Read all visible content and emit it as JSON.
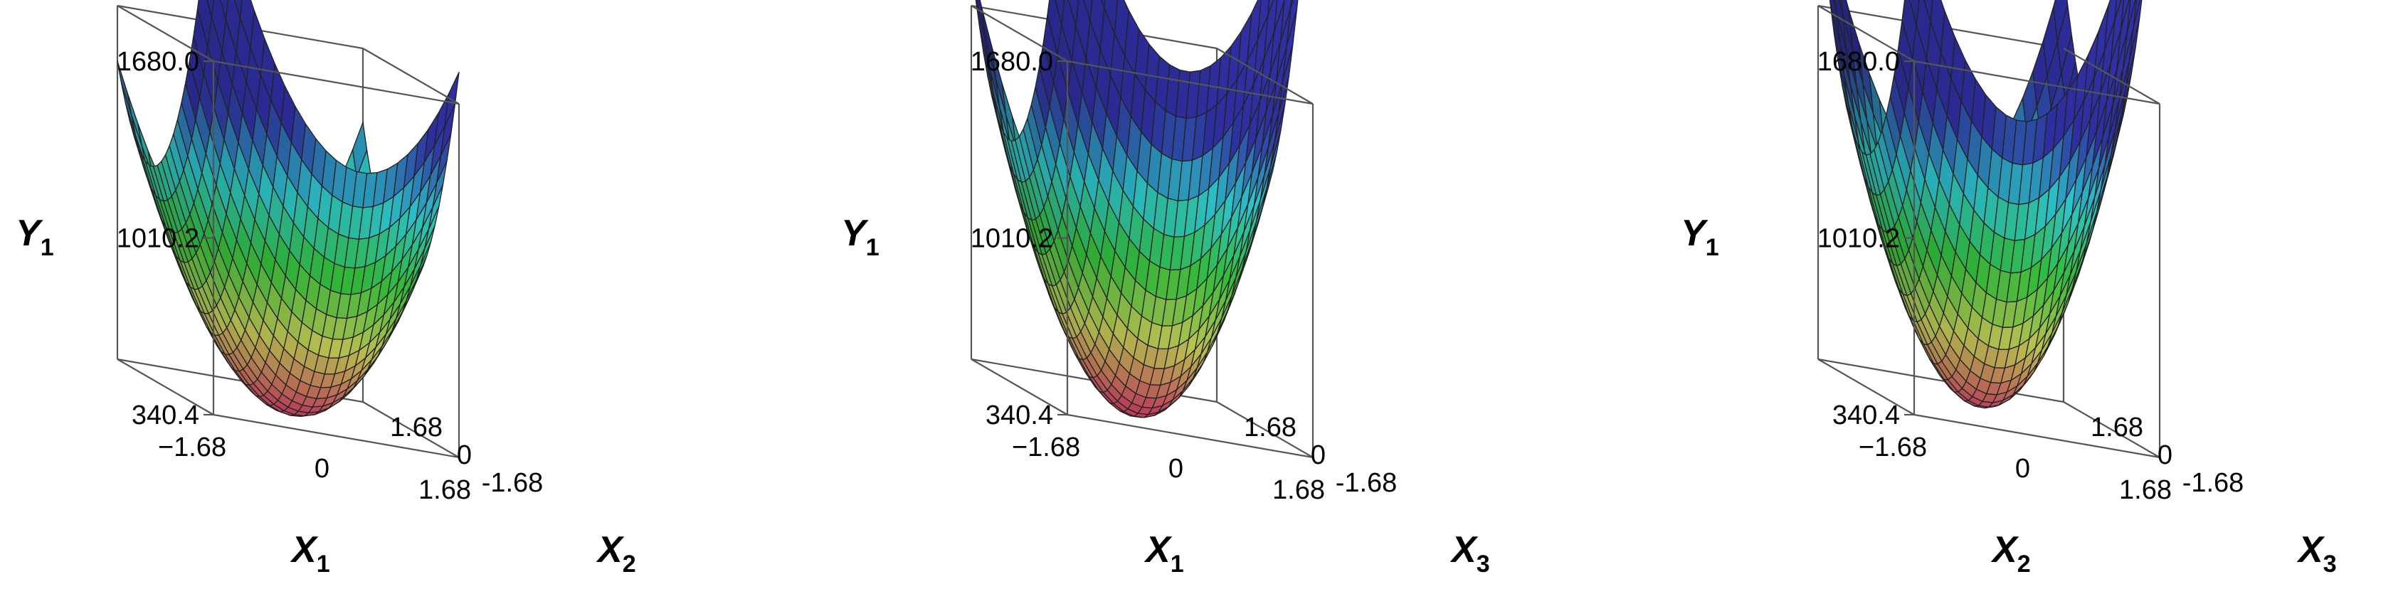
{
  "chart_data": [
    {
      "type": "surface3d",
      "xlabel": {
        "base": "X",
        "sub": "1"
      },
      "ylabel": {
        "base": "X",
        "sub": "2"
      },
      "zlabel": {
        "base": "Y",
        "sub": "1"
      },
      "x_ticks": [
        "−1.68",
        "0",
        "1.68"
      ],
      "y_ticks": [
        "-1.68",
        "0",
        "1.68"
      ],
      "z_ticks": [
        "1680.0",
        "1010.2",
        "340.4"
      ],
      "xlim": [
        -1.68,
        1.68
      ],
      "ylim": [
        -1.68,
        1.68
      ],
      "zlim": [
        340.4,
        1680.0
      ],
      "corner_z": {
        "x_low_y_low": 1680,
        "x_high_y_low": 1090,
        "x_low_y_high": 760,
        "x_high_y_high": 690
      },
      "min_z": 345,
      "colormap": [
        "#ff5a7a",
        "#f4ff6a",
        "#3ff04a",
        "#38f6ff",
        "#3a3ac8"
      ]
    },
    {
      "type": "surface3d",
      "xlabel": {
        "base": "X",
        "sub": "1"
      },
      "ylabel": {
        "base": "X",
        "sub": "3"
      },
      "zlabel": {
        "base": "Y",
        "sub": "1"
      },
      "x_ticks": [
        "−1.68",
        "0",
        "1.68"
      ],
      "y_ticks": [
        "-1.68",
        "0",
        "1.68"
      ],
      "z_ticks": [
        "1680.0",
        "1010.2",
        "340.4"
      ],
      "xlim": [
        -1.68,
        1.68
      ],
      "ylim": [
        -1.68,
        1.68
      ],
      "zlim": [
        340.4,
        1680.0
      ],
      "corner_z": {
        "x_low_y_low": 1650,
        "x_high_y_low": 1790,
        "x_low_y_high": 930,
        "x_high_y_high": 650
      },
      "min_z": 345,
      "colormap": [
        "#ff5a7a",
        "#f4ff6a",
        "#3ff04a",
        "#38f6ff",
        "#3a3ac8"
      ]
    },
    {
      "type": "surface3d",
      "xlabel": {
        "base": "X",
        "sub": "2"
      },
      "ylabel": {
        "base": "X",
        "sub": "3"
      },
      "zlabel": {
        "base": "Y",
        "sub": "1"
      },
      "x_ticks": [
        "−1.68",
        "0",
        "1.68"
      ],
      "y_ticks": [
        "-1.68",
        "0",
        "1.68"
      ],
      "z_ticks": [
        "1680.0",
        "1010.2",
        "340.4"
      ],
      "xlim": [
        -1.68,
        1.68
      ],
      "ylim": [
        -1.68,
        1.68
      ],
      "zlim": [
        340.4,
        1680.0
      ],
      "corner_z": {
        "x_low_y_low": 1280,
        "x_high_y_low": 1800,
        "x_low_y_high": 1160,
        "x_high_y_high": 1010
      },
      "min_z": 345,
      "colormap": [
        "#ff5a7a",
        "#f4ff6a",
        "#3ff04a",
        "#38f6ff",
        "#3a3ac8"
      ]
    }
  ]
}
